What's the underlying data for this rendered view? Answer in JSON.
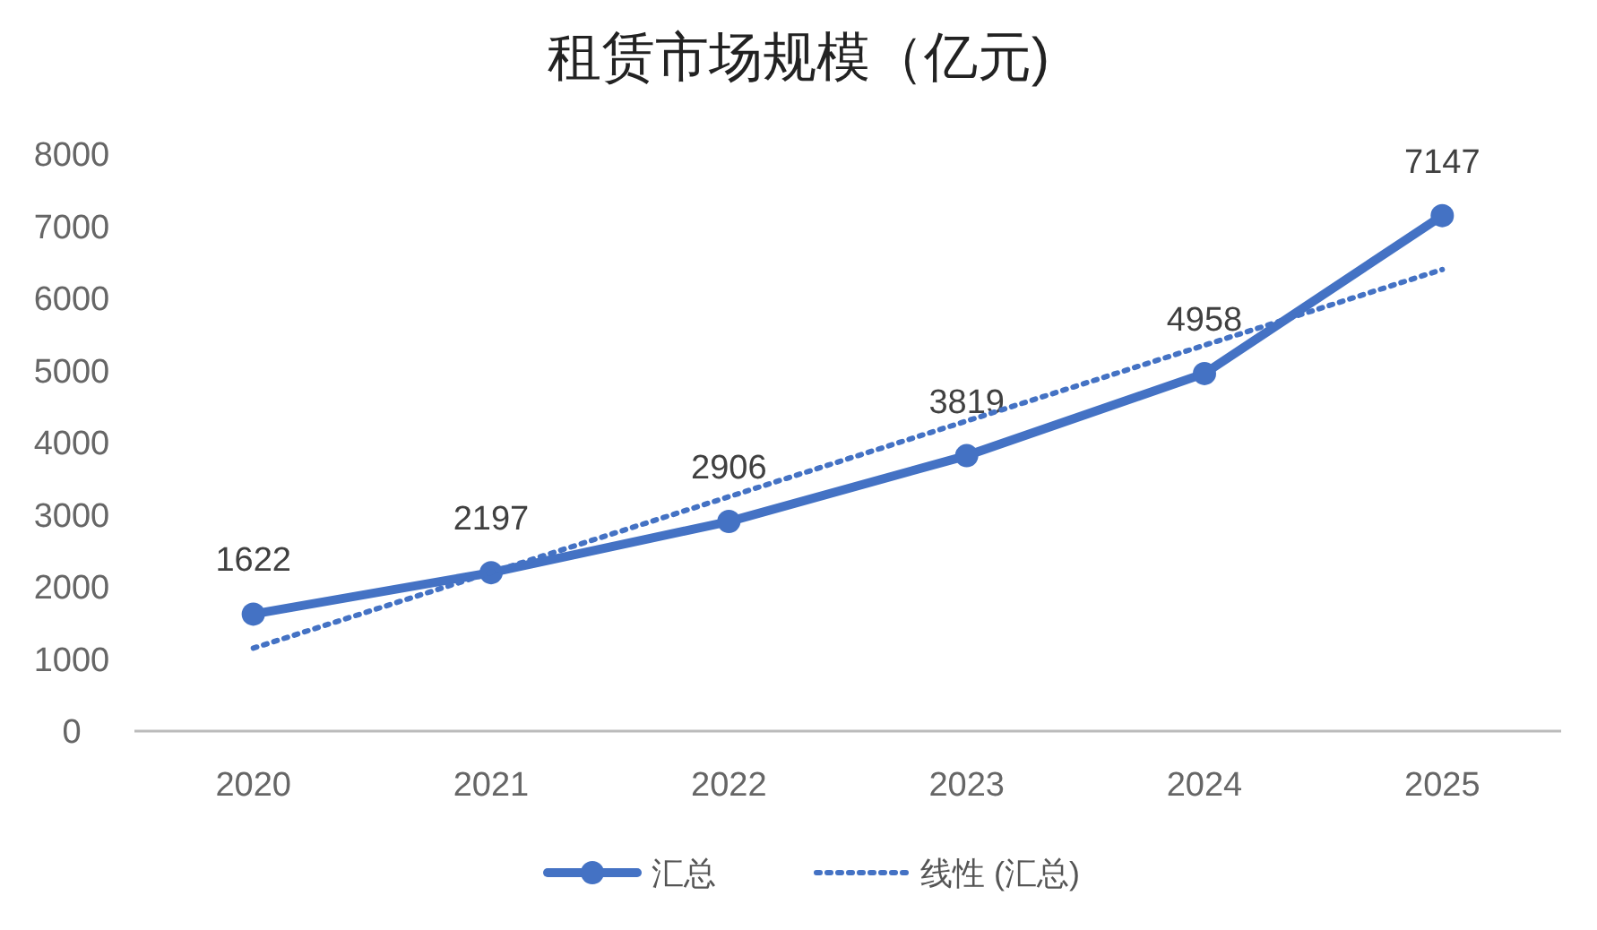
{
  "chart_data": {
    "type": "line",
    "title": "租赁市场规模（亿元)",
    "categories": [
      "2020",
      "2021",
      "2022",
      "2023",
      "2024",
      "2025"
    ],
    "series": [
      {
        "name": "汇总",
        "color": "#4472c4",
        "values": [
          1622,
          2197,
          2906,
          3819,
          4958,
          7147
        ],
        "value_labels": [
          "1622",
          "2197",
          "2906",
          "3819",
          "4958",
          "7147"
        ],
        "marker": "circle",
        "line_style": "solid"
      },
      {
        "name": "线性 (汇总)",
        "color": "#4472c4",
        "values": [
          1150,
          2200,
          3250,
          4300,
          5350,
          6400
        ],
        "marker": "none",
        "line_style": "dotted"
      }
    ],
    "ylim": [
      0,
      8000
    ],
    "yticks": [
      0,
      1000,
      2000,
      3000,
      4000,
      5000,
      6000,
      7000,
      8000
    ],
    "grid": false,
    "legend": "bottom"
  }
}
